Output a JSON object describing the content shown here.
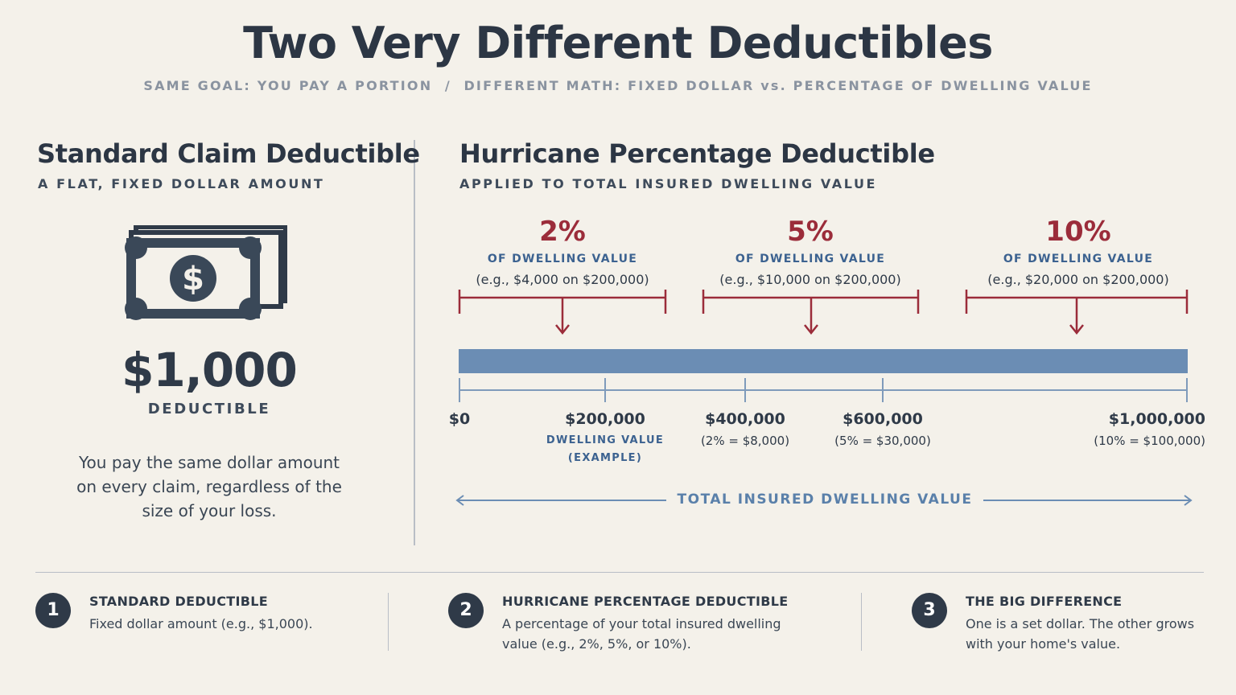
{
  "title": "Two Very Different Deductibles",
  "subtitle": "SAME GOAL: YOU PAY A PORTION  /  DIFFERENT MATH: FIXED DOLLAR vs. PERCENTAGE OF DWELLING VALUE",
  "left": {
    "title": "Standard Claim Deductible",
    "subtitle": "A FLAT, FIXED DOLLAR AMOUNT",
    "icon": "money-bill-icon",
    "bill_symbol": "$",
    "amount": "$1,000",
    "amount_label": "DEDUCTIBLE",
    "description": "You pay the same dollar amount on every claim, regardless of the size of your loss."
  },
  "right": {
    "title": "Hurricane Percentage Deductible",
    "subtitle": "APPLIED TO TOTAL INSURED DWELLING VALUE",
    "percentages": [
      {
        "value": "2%",
        "label": "OF DWELLING VALUE",
        "example": "(e.g., $4,000 on $200,000)"
      },
      {
        "value": "5%",
        "label": "OF DWELLING VALUE",
        "example": "(e.g., $10,000 on $200,000)"
      },
      {
        "value": "10%",
        "label": "OF DWELLING VALUE",
        "example": "(e.g., $20,000 on $200,000)"
      }
    ],
    "scale": {
      "ticks": [
        {
          "label": "$0",
          "sub": ""
        },
        {
          "label": "$200,000",
          "sub": ""
        },
        {
          "label": "$400,000",
          "sub": "(2% = $8,000)"
        },
        {
          "label": "$600,000",
          "sub": "(5% = $30,000)"
        },
        {
          "label": "$1,000,000",
          "sub": "(10% = $100,000)"
        }
      ],
      "note_line1": "DWELLING VALUE",
      "note_line2": "(EXAMPLE)",
      "axis_label": "TOTAL INSURED DWELLING VALUE"
    }
  },
  "steps": [
    {
      "num": "1",
      "head": "STANDARD DEDUCTIBLE",
      "text": "Fixed dollar amount (e.g., $1,000)."
    },
    {
      "num": "2",
      "head": "HURRICANE PERCENTAGE DEDUCTIBLE",
      "text": "A percentage of your total insured dwelling value (e.g., 2%, 5%, or 10%)."
    },
    {
      "num": "3",
      "head": "THE BIG DIFFERENCE",
      "text": "One is a set dollar. The other grows with your home's value."
    }
  ],
  "colors": {
    "accent_red": "#9b2c3a",
    "accent_blue": "#3c6290",
    "bar_blue": "#6b8db4",
    "dark": "#2f3a48"
  }
}
